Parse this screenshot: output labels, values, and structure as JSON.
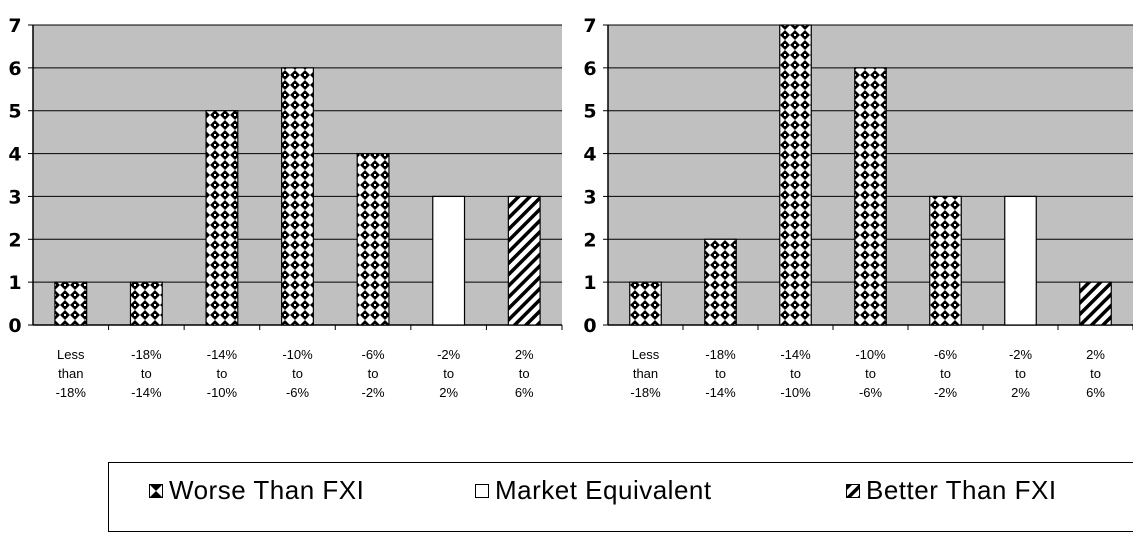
{
  "chart_data": [
    {
      "type": "bar",
      "categories": [
        "Less than -18%",
        "-18% to -14%",
        "-14% to -10%",
        "-10% to -6%",
        "-6% to -2%",
        "-2% to 2%",
        "2% to 6%"
      ],
      "category_lines": [
        [
          "Less",
          "than",
          "-18%"
        ],
        [
          "-18%",
          "to",
          "-14%"
        ],
        [
          "-14%",
          "to",
          "-10%"
        ],
        [
          "-10%",
          "to",
          "-6%"
        ],
        [
          "-6%",
          "to",
          "-2%"
        ],
        [
          "-2%",
          "to",
          "2%"
        ],
        [
          "2%",
          "to",
          "6%"
        ]
      ],
      "values": [
        1,
        1,
        5,
        6,
        4,
        3,
        3
      ],
      "bar_kind": [
        "worse",
        "worse",
        "worse",
        "worse",
        "worse",
        "equivalent",
        "better"
      ],
      "ylim": [
        0,
        7
      ],
      "yticks": [
        0,
        1,
        2,
        3,
        4,
        5,
        6,
        7
      ],
      "grid": true
    },
    {
      "type": "bar",
      "categories": [
        "Less than -18%",
        "-18% to -14%",
        "-14% to -10%",
        "-10% to -6%",
        "-6% to -2%",
        "-2% to 2%",
        "2% to 6%"
      ],
      "category_lines": [
        [
          "Less",
          "than",
          "-18%"
        ],
        [
          "-18%",
          "to",
          "-14%"
        ],
        [
          "-14%",
          "to",
          "-10%"
        ],
        [
          "-10%",
          "to",
          "-6%"
        ],
        [
          "-6%",
          "to",
          "-2%"
        ],
        [
          "-2%",
          "to",
          "2%"
        ],
        [
          "2%",
          "to",
          "6%"
        ]
      ],
      "values": [
        1,
        2,
        7,
        6,
        3,
        3,
        1
      ],
      "bar_kind": [
        "worse",
        "worse",
        "worse",
        "worse",
        "worse",
        "equivalent",
        "better"
      ],
      "ylim": [
        0,
        7
      ],
      "yticks": [
        0,
        1,
        2,
        3,
        4,
        5,
        6,
        7
      ],
      "grid": true
    }
  ],
  "legend": {
    "placement": "bottom",
    "items": [
      {
        "key": "worse",
        "label": "Worse Than FXI"
      },
      {
        "key": "equivalent",
        "label": "Market Equivalent"
      },
      {
        "key": "better",
        "label": "Better Than FXI"
      }
    ]
  },
  "colors": {
    "plot_background": "#c0c0c0",
    "gridline": "#000000",
    "worse_pattern_dark": "#000000",
    "worse_pattern_light": "#ffffff",
    "equivalent_fill": "#ffffff",
    "better_hatch": "#000000"
  }
}
